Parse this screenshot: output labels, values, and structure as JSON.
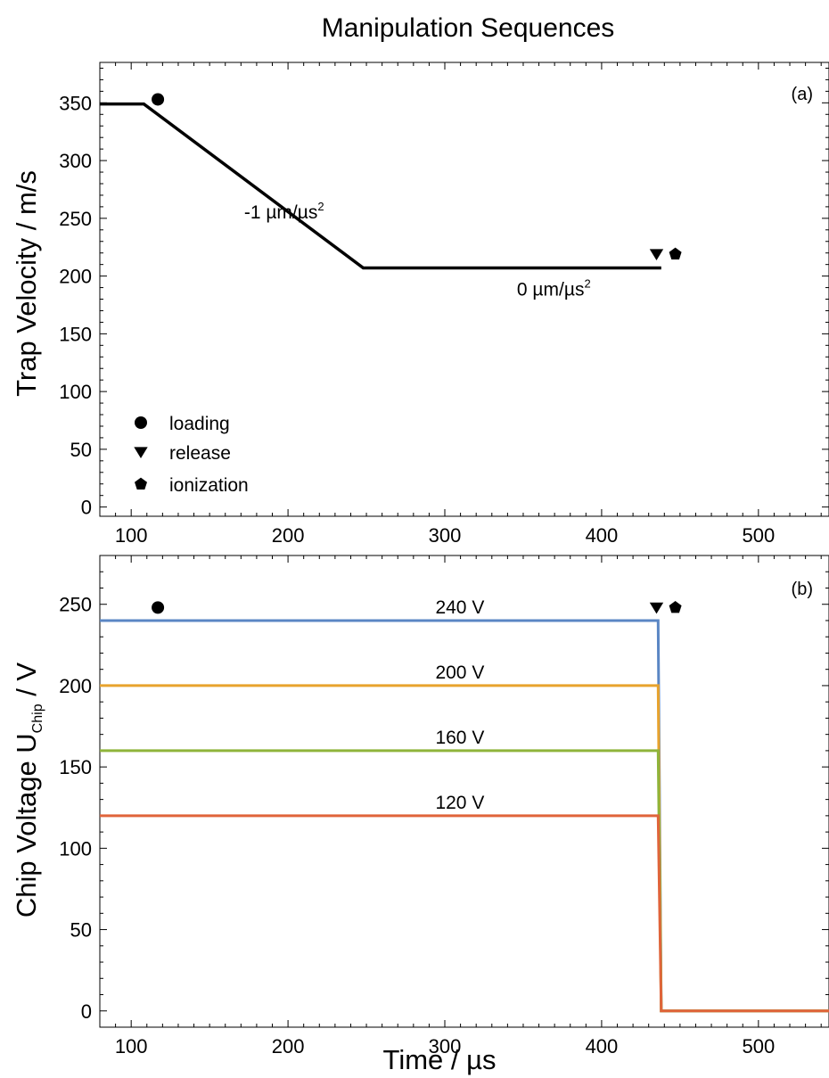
{
  "figure": {
    "title": "Manipulation Sequences"
  },
  "chart_data": [
    {
      "type": "line",
      "panel_label": "(a)",
      "xlabel": "",
      "ylabel": "Trap Velocity / m/s",
      "xlim": [
        80,
        545
      ],
      "ylim": [
        -8,
        385
      ],
      "x_ticks": [
        100,
        200,
        300,
        400,
        500
      ],
      "y_ticks": [
        0,
        50,
        100,
        150,
        200,
        250,
        300,
        350
      ],
      "series": [
        {
          "color": "#000000",
          "points": [
            [
              80,
              349
            ],
            [
              108,
              349
            ],
            [
              248,
              207
            ],
            [
              438,
              207
            ]
          ]
        }
      ],
      "annotations": [
        {
          "text_main": "-1 µm/µs",
          "text_sup": "2",
          "x": 172,
          "y": 250
        },
        {
          "text_main": "0 µm/µs",
          "text_sup": "2",
          "x": 346,
          "y": 183
        }
      ],
      "markers": [
        {
          "kind": "loading",
          "shape": "circle",
          "x": 117,
          "y": 353
        },
        {
          "kind": "release",
          "shape": "triangle-down",
          "x": 435,
          "y": 219
        },
        {
          "kind": "ionization",
          "shape": "pentagon",
          "x": 447,
          "y": 219
        }
      ],
      "legend": {
        "position": "bottom-left",
        "entries": [
          {
            "label": "loading",
            "shape": "circle"
          },
          {
            "label": "release",
            "shape": "triangle-down"
          },
          {
            "label": "ionization",
            "shape": "pentagon"
          }
        ]
      },
      "grid": false
    },
    {
      "type": "line",
      "panel_label": "(b)",
      "xlabel": "Time / µs",
      "ylabel_main": "Chip Voltage U",
      "ylabel_sub": "Chip",
      "ylabel_tail": " / V",
      "xlim": [
        80,
        545
      ],
      "ylim": [
        -10,
        280
      ],
      "x_ticks": [
        100,
        200,
        300,
        400,
        500
      ],
      "y_ticks": [
        0,
        50,
        100,
        150,
        200,
        250
      ],
      "series": [
        {
          "name": "240 V",
          "color": "#5a86c4",
          "points": [
            [
              80,
              240
            ],
            [
              436,
              240
            ],
            [
              438,
              0
            ],
            [
              545,
              0
            ]
          ],
          "label_x": 294
        },
        {
          "name": "200 V",
          "color": "#e8a32d",
          "points": [
            [
              80,
              200
            ],
            [
              436,
              200
            ],
            [
              438,
              0
            ],
            [
              545,
              0
            ]
          ],
          "label_x": 294
        },
        {
          "name": "160 V",
          "color": "#8fb43a",
          "points": [
            [
              80,
              160
            ],
            [
              436,
              160
            ],
            [
              438,
              0
            ],
            [
              545,
              0
            ]
          ],
          "label_x": 294
        },
        {
          "name": "120 V",
          "color": "#e0643a",
          "points": [
            [
              80,
              120
            ],
            [
              436,
              120
            ],
            [
              438,
              0
            ],
            [
              545,
              0
            ]
          ],
          "label_x": 294
        }
      ],
      "markers": [
        {
          "kind": "loading",
          "shape": "circle",
          "x": 117,
          "y": 248
        },
        {
          "kind": "release",
          "shape": "triangle-down",
          "x": 435,
          "y": 248
        },
        {
          "kind": "ionization",
          "shape": "pentagon",
          "x": 447,
          "y": 248
        }
      ],
      "grid": false
    }
  ]
}
